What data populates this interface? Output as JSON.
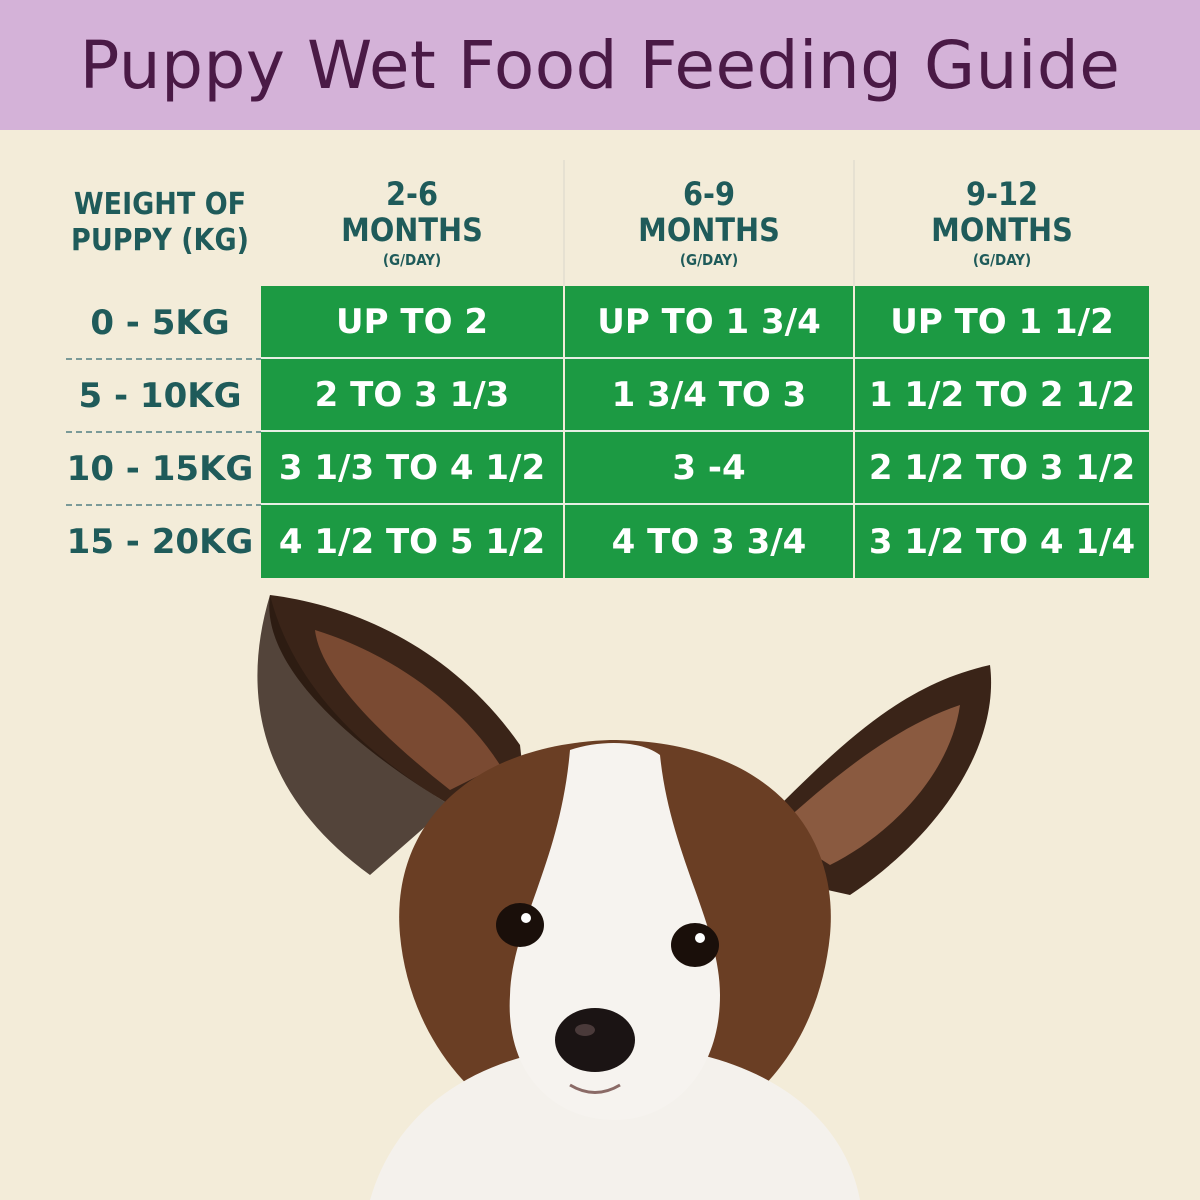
{
  "title": "Puppy Wet Food Feeding Guide",
  "colors": {
    "background": "#f3ecd9",
    "title_bar": "#d4b2d8",
    "title_text": "#4a1a46",
    "header_text": "#1f5b5a",
    "cell_fill": "#1c9a43",
    "cell_text": "#ffffff"
  },
  "table": {
    "weight_header_line1": "WEIGHT OF",
    "weight_header_line2": "PUPPY (KG)",
    "columns": [
      {
        "age": "2-6",
        "label": "MONTHS",
        "unit": "(G/DAY)"
      },
      {
        "age": "6-9",
        "label": "MONTHS",
        "unit": "(G/DAY)"
      },
      {
        "age": "9-12",
        "label": "MONTHS",
        "unit": "(G/DAY)"
      }
    ],
    "rows": [
      {
        "weight": "0 - 5KG",
        "values": [
          "UP TO 2",
          "UP TO 1 3/4",
          "UP TO 1 1/2"
        ]
      },
      {
        "weight": "5 - 10KG",
        "values": [
          "2 TO 3 1/3",
          "1 3/4 TO 3",
          "1 1/2 TO 2 1/2"
        ]
      },
      {
        "weight": "10 - 15KG",
        "values": [
          "3 1/3 TO 4 1/2",
          "3 -4",
          "2 1/2 TO 3 1/2"
        ]
      },
      {
        "weight": "15 - 20KG",
        "values": [
          "4 1/2 TO 5 1/2",
          "4 TO 3 3/4",
          "3 1/2 TO 4 1/4"
        ]
      }
    ]
  },
  "image": {
    "subject": "papillon-puppy-photo"
  }
}
